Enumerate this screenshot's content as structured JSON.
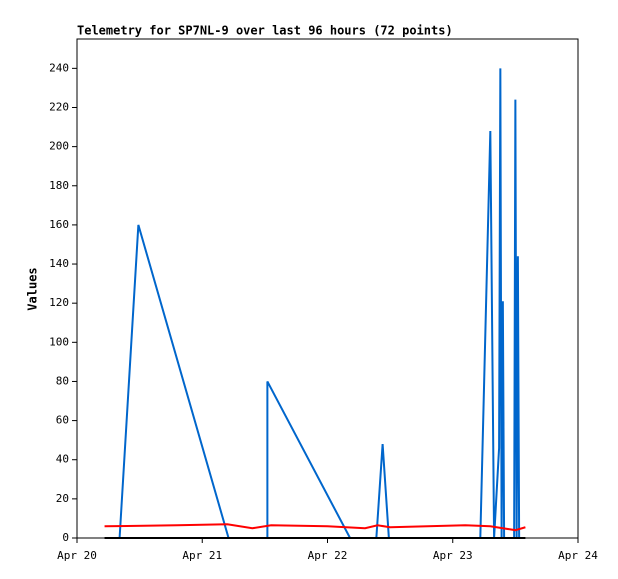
{
  "chart_data": {
    "type": "line",
    "title": "Telemetry for SP7NL-9 over last 96 hours (72 points)",
    "y_label": "Values",
    "xlim": [
      0,
      4
    ],
    "xticks": [
      {
        "value": 0,
        "label": "Apr 20"
      },
      {
        "value": 1,
        "label": "Apr 21"
      },
      {
        "value": 2,
        "label": "Apr 22"
      },
      {
        "value": 3,
        "label": "Apr 23"
      },
      {
        "value": 4,
        "label": "Apr 24"
      }
    ],
    "ylim": [
      0,
      255
    ],
    "yticks": [
      0,
      20,
      40,
      60,
      80,
      100,
      120,
      140,
      160,
      180,
      200,
      220,
      240
    ],
    "grid": false,
    "series": [
      {
        "color": "#0066cc",
        "x": [
          0.34,
          0.49,
          1.21,
          1.52,
          1.52,
          2.18,
          2.39,
          2.44,
          2.49,
          3.22,
          3.3,
          3.33,
          3.37,
          3.38,
          3.39,
          3.4,
          3.41,
          3.49,
          3.5,
          3.51,
          3.52,
          3.53,
          3.57
        ],
        "values": [
          0,
          160,
          0,
          0,
          80,
          0,
          0,
          48,
          0,
          0,
          208,
          0,
          46,
          240,
          0,
          121,
          0,
          0,
          224,
          0,
          144,
          0,
          0
        ]
      },
      {
        "color": "#ff0000",
        "x": [
          0.22,
          0.8,
          1.2,
          1.4,
          1.55,
          2.0,
          2.3,
          2.4,
          2.5,
          2.8,
          3.1,
          3.3,
          3.4,
          3.5,
          3.58
        ],
        "values": [
          6,
          6.5,
          7,
          5,
          6.5,
          6,
          5,
          6.5,
          5.5,
          6,
          6.5,
          6,
          5,
          4,
          5.5
        ]
      },
      {
        "color": "#000000",
        "x": [
          0.22,
          3.58
        ],
        "values": [
          0,
          0
        ]
      }
    ]
  }
}
